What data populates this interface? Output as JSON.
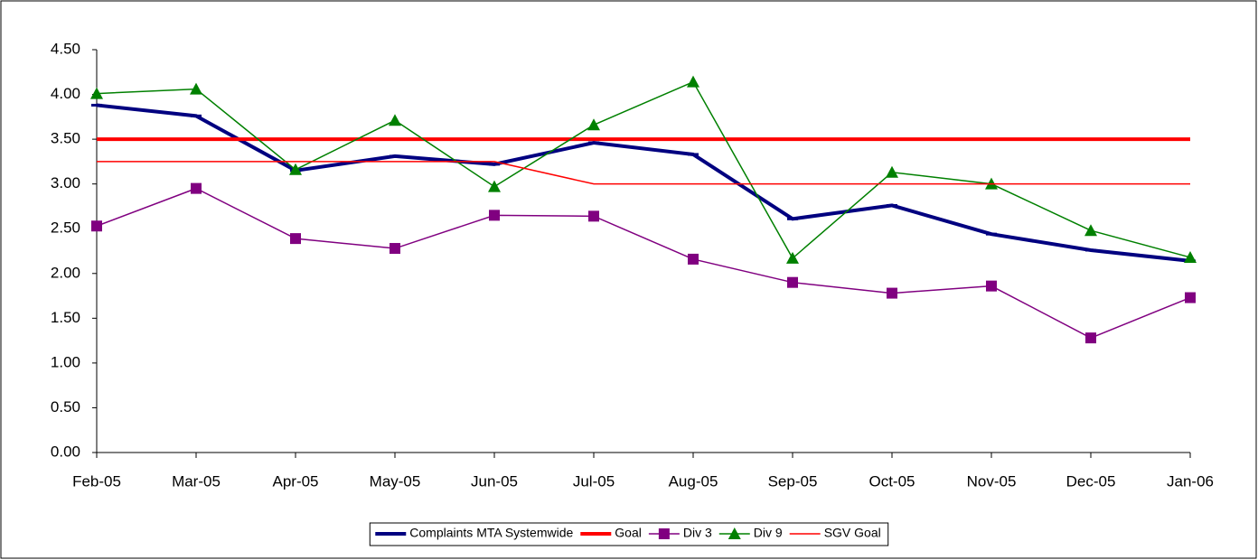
{
  "chart_data": {
    "type": "line",
    "categories": [
      "Feb-05",
      "Mar-05",
      "Apr-05",
      "May-05",
      "Jun-05",
      "Jul-05",
      "Aug-05",
      "Sep-05",
      "Oct-05",
      "Nov-05",
      "Dec-05",
      "Jan-06"
    ],
    "ylim": [
      0,
      4.5
    ],
    "yticks": [
      {
        "value": 0,
        "label": "0.00"
      },
      {
        "value": 0.5,
        "label": "0.50"
      },
      {
        "value": 1,
        "label": "1.00"
      },
      {
        "value": 1.5,
        "label": "1.50"
      },
      {
        "value": 2,
        "label": "2.00"
      },
      {
        "value": 2.5,
        "label": "2.50"
      },
      {
        "value": 3,
        "label": "3.00"
      },
      {
        "value": 3.5,
        "label": "3.50"
      },
      {
        "value": 4,
        "label": "4.00"
      },
      {
        "value": 4.5,
        "label": "4.50"
      }
    ],
    "grid": false,
    "legend": "bottom",
    "series": [
      {
        "name": "Complaints MTA Systemwide",
        "color": "#000080",
        "marker": "dash",
        "values": [
          3.88,
          3.76,
          3.15,
          3.31,
          3.22,
          3.46,
          3.33,
          2.61,
          2.76,
          2.44,
          2.26,
          2.14
        ]
      },
      {
        "name": "Goal",
        "color": "#ff0000",
        "marker": "none",
        "values": [
          3.5,
          3.5,
          3.5,
          3.5,
          3.5,
          3.5,
          3.5,
          3.5,
          3.5,
          3.5,
          3.5,
          3.5
        ]
      },
      {
        "name": "Div 3",
        "color": "#800080",
        "marker": "square",
        "values": [
          2.53,
          2.95,
          2.39,
          2.28,
          2.65,
          2.64,
          2.16,
          1.9,
          1.78,
          1.86,
          1.28,
          1.73
        ]
      },
      {
        "name": "Div 9",
        "color": "#008000",
        "marker": "triangle",
        "values": [
          4.01,
          4.06,
          3.16,
          3.71,
          2.97,
          3.66,
          4.14,
          2.17,
          3.13,
          3.0,
          2.48,
          2.18
        ]
      },
      {
        "name": "SGV Goal",
        "color": "#ff0000",
        "marker": "none",
        "values": [
          3.25,
          3.25,
          3.25,
          3.25,
          3.25,
          3.0,
          3.0,
          3.0,
          3.0,
          3.0,
          3.0,
          3.0
        ]
      }
    ]
  }
}
